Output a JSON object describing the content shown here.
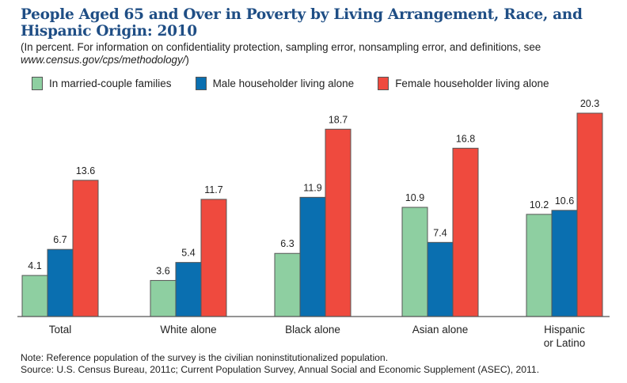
{
  "title": "People Aged 65 and Over in Poverty by Living Arrangement, Race, and Hispanic Origin: 2010",
  "subtitle": "(In percent. For information on confidentiality protection, sampling error, nonsampling error, and definitions, see ",
  "subtitle_link": "www.census.gov/cps/methodology/",
  "subtitle_end": ")",
  "note": "Note: Reference population of the survey is the civilian noninstitutionalized population.",
  "source": "Source: U.S. Census Bureau, 2011c; Current Population Survey, Annual Social and Economic Supplement (ASEC), 2011.",
  "chart_data": {
    "type": "bar",
    "categories": [
      [
        "Total"
      ],
      [
        "White alone"
      ],
      [
        "Black alone"
      ],
      [
        "Asian alone"
      ],
      [
        "Hispanic",
        "or Latino"
      ]
    ],
    "series": [
      {
        "name": "In married-couple families",
        "color": "#8ecfa1",
        "values": [
          4.1,
          3.6,
          6.3,
          10.9,
          10.2
        ]
      },
      {
        "name": "Male householder living alone",
        "color": "#0a6fb0",
        "values": [
          6.7,
          5.4,
          11.9,
          7.4,
          10.6
        ]
      },
      {
        "name": "Female householder living alone",
        "color": "#ef4a3e",
        "values": [
          13.6,
          11.7,
          18.7,
          16.8,
          20.3
        ]
      }
    ],
    "ylim": [
      0,
      20.3
    ],
    "legend": "top",
    "grid": false,
    "data_labels": true
  }
}
